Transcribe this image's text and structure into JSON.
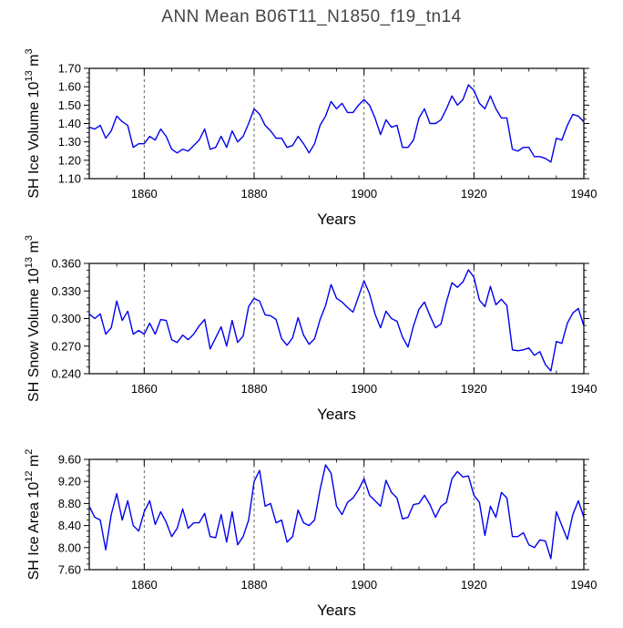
{
  "figure": {
    "title": "ANN Mean  B06T11_N1850_f19_tn14"
  },
  "chart_data": [
    {
      "type": "line",
      "xlabel": "Years",
      "ylabel": "SH Ice Volume 10",
      "ylabel_exp": "13",
      "ylabel_unit": " m",
      "ylabel_unit_exp": "3",
      "xlim": [
        1850,
        1940
      ],
      "ylim": [
        1.1,
        1.7
      ],
      "xticks": [
        1860,
        1880,
        1900,
        1920,
        1940
      ],
      "xtick_labels": [
        "1860",
        "1880",
        "1900",
        "1920",
        "1940"
      ],
      "yticks": [
        1.1,
        1.2,
        1.3,
        1.4,
        1.5,
        1.6,
        1.7
      ],
      "ytick_labels": [
        "1.10",
        "1.20",
        "1.30",
        "1.40",
        "1.50",
        "1.60",
        "1.70"
      ],
      "grid_x": [
        1860,
        1880,
        1900,
        1920
      ],
      "color": "#0000ee",
      "x_start": 1850,
      "values": [
        1.38,
        1.37,
        1.39,
        1.32,
        1.36,
        1.44,
        1.41,
        1.39,
        1.27,
        1.29,
        1.29,
        1.33,
        1.31,
        1.37,
        1.33,
        1.26,
        1.24,
        1.26,
        1.25,
        1.28,
        1.31,
        1.37,
        1.26,
        1.27,
        1.33,
        1.27,
        1.36,
        1.3,
        1.33,
        1.4,
        1.48,
        1.45,
        1.39,
        1.36,
        1.32,
        1.32,
        1.27,
        1.28,
        1.33,
        1.29,
        1.24,
        1.29,
        1.39,
        1.44,
        1.52,
        1.48,
        1.51,
        1.46,
        1.46,
        1.5,
        1.53,
        1.5,
        1.43,
        1.34,
        1.42,
        1.38,
        1.39,
        1.27,
        1.27,
        1.31,
        1.43,
        1.48,
        1.4,
        1.4,
        1.42,
        1.48,
        1.55,
        1.5,
        1.53,
        1.61,
        1.58,
        1.51,
        1.48,
        1.55,
        1.48,
        1.43,
        1.43,
        1.26,
        1.25,
        1.27,
        1.27,
        1.22,
        1.22,
        1.21,
        1.19,
        1.32,
        1.31,
        1.39,
        1.45,
        1.44,
        1.41
      ]
    },
    {
      "type": "line",
      "xlabel": "Years",
      "ylabel": "SH Snow Volume 10",
      "ylabel_exp": "13",
      "ylabel_unit": " m",
      "ylabel_unit_exp": "3",
      "xlim": [
        1850,
        1940
      ],
      "ylim": [
        0.24,
        0.36
      ],
      "xticks": [
        1860,
        1880,
        1900,
        1920,
        1940
      ],
      "xtick_labels": [
        "1860",
        "1880",
        "1900",
        "1920",
        "1940"
      ],
      "yticks": [
        0.24,
        0.27,
        0.3,
        0.33,
        0.36
      ],
      "ytick_labels": [
        "0.240",
        "0.270",
        "0.300",
        "0.330",
        "0.360"
      ],
      "grid_x": [
        1860,
        1880,
        1900,
        1920
      ],
      "color": "#0000ee",
      "x_start": 1850,
      "values": [
        0.305,
        0.3,
        0.305,
        0.283,
        0.29,
        0.319,
        0.298,
        0.308,
        0.283,
        0.287,
        0.283,
        0.295,
        0.283,
        0.299,
        0.298,
        0.277,
        0.274,
        0.282,
        0.277,
        0.283,
        0.292,
        0.299,
        0.267,
        0.279,
        0.291,
        0.27,
        0.298,
        0.274,
        0.281,
        0.313,
        0.322,
        0.319,
        0.304,
        0.303,
        0.299,
        0.278,
        0.271,
        0.279,
        0.301,
        0.282,
        0.272,
        0.278,
        0.299,
        0.314,
        0.337,
        0.322,
        0.318,
        0.312,
        0.307,
        0.324,
        0.341,
        0.327,
        0.305,
        0.29,
        0.308,
        0.3,
        0.297,
        0.28,
        0.269,
        0.292,
        0.31,
        0.318,
        0.303,
        0.29,
        0.294,
        0.318,
        0.339,
        0.334,
        0.34,
        0.353,
        0.345,
        0.32,
        0.313,
        0.335,
        0.315,
        0.321,
        0.314,
        0.266,
        0.265,
        0.266,
        0.268,
        0.26,
        0.264,
        0.25,
        0.243,
        0.275,
        0.273,
        0.295,
        0.306,
        0.311,
        0.292
      ]
    },
    {
      "type": "line",
      "xlabel": "Years",
      "ylabel": "SH Ice Area 10",
      "ylabel_exp": "12",
      "ylabel_unit": " m",
      "ylabel_unit_exp": "2",
      "xlim": [
        1850,
        1940
      ],
      "ylim": [
        7.6,
        9.6
      ],
      "xticks": [
        1860,
        1880,
        1900,
        1920,
        1940
      ],
      "xtick_labels": [
        "1860",
        "1880",
        "1900",
        "1920",
        "1940"
      ],
      "yticks": [
        7.6,
        8.0,
        8.4,
        8.8,
        9.2,
        9.6
      ],
      "ytick_labels": [
        "7.60",
        "8.00",
        "8.40",
        "8.80",
        "9.20",
        "9.60"
      ],
      "grid_x": [
        1860,
        1880,
        1900,
        1920
      ],
      "color": "#0000ee",
      "x_start": 1850,
      "values": [
        8.75,
        8.55,
        8.5,
        7.96,
        8.6,
        8.98,
        8.5,
        8.85,
        8.4,
        8.3,
        8.65,
        8.85,
        8.42,
        8.65,
        8.46,
        8.2,
        8.35,
        8.7,
        8.35,
        8.45,
        8.45,
        8.62,
        8.2,
        8.18,
        8.6,
        8.1,
        8.65,
        8.05,
        8.2,
        8.5,
        9.2,
        9.4,
        8.75,
        8.8,
        8.45,
        8.5,
        8.1,
        8.2,
        8.68,
        8.45,
        8.4,
        8.5,
        9.05,
        9.5,
        9.35,
        8.75,
        8.6,
        8.82,
        8.9,
        9.05,
        9.25,
        8.95,
        8.85,
        8.75,
        9.22,
        9.0,
        8.9,
        8.52,
        8.55,
        8.78,
        8.8,
        8.95,
        8.78,
        8.55,
        8.75,
        8.82,
        9.25,
        9.38,
        9.28,
        9.3,
        8.95,
        8.82,
        8.22,
        8.75,
        8.55,
        9.0,
        8.9,
        8.2,
        8.2,
        8.27,
        8.05,
        8.0,
        8.14,
        8.12,
        7.8,
        8.65,
        8.4,
        8.15,
        8.6,
        8.85,
        8.55
      ]
    }
  ]
}
